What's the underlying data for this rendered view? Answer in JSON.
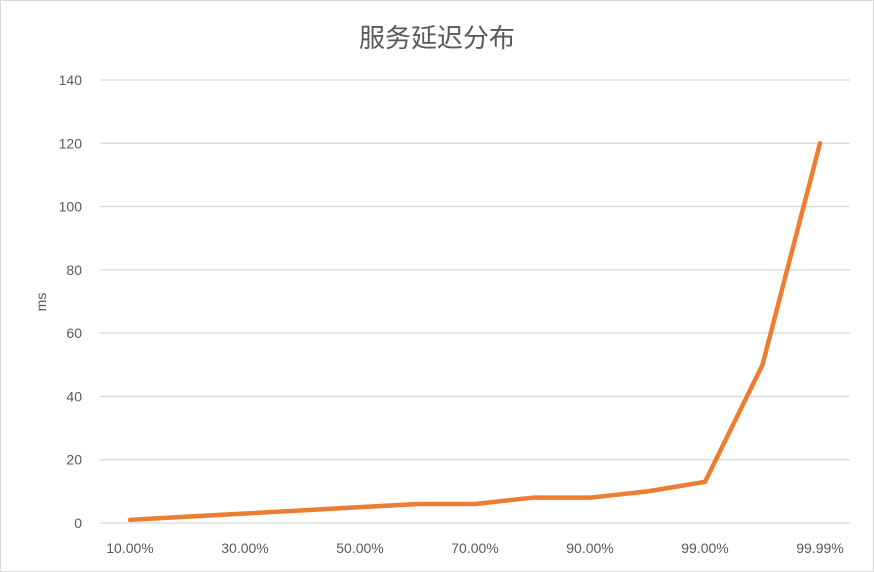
{
  "chart_data": {
    "type": "line",
    "title": "服务延迟分布",
    "xlabel": "",
    "ylabel": "ms",
    "x": [
      "10.00%",
      "20.00%",
      "30.00%",
      "40.00%",
      "50.00%",
      "60.00%",
      "70.00%",
      "80.00%",
      "90.00%",
      "95.00%",
      "99.00%",
      "99.90%",
      "99.99%"
    ],
    "xtick_labels": [
      "10.00%",
      "30.00%",
      "50.00%",
      "70.00%",
      "90.00%",
      "99.00%",
      "99.99%"
    ],
    "series": [
      {
        "values": [
          1,
          2,
          3,
          4,
          5,
          6,
          6,
          8,
          8,
          10,
          13,
          50,
          120
        ],
        "color": "#ED7D31"
      }
    ],
    "ylim": [
      0,
      140
    ],
    "yticks": [
      0,
      20,
      40,
      60,
      80,
      100,
      120,
      140
    ],
    "grid": true,
    "legend": "none"
  }
}
